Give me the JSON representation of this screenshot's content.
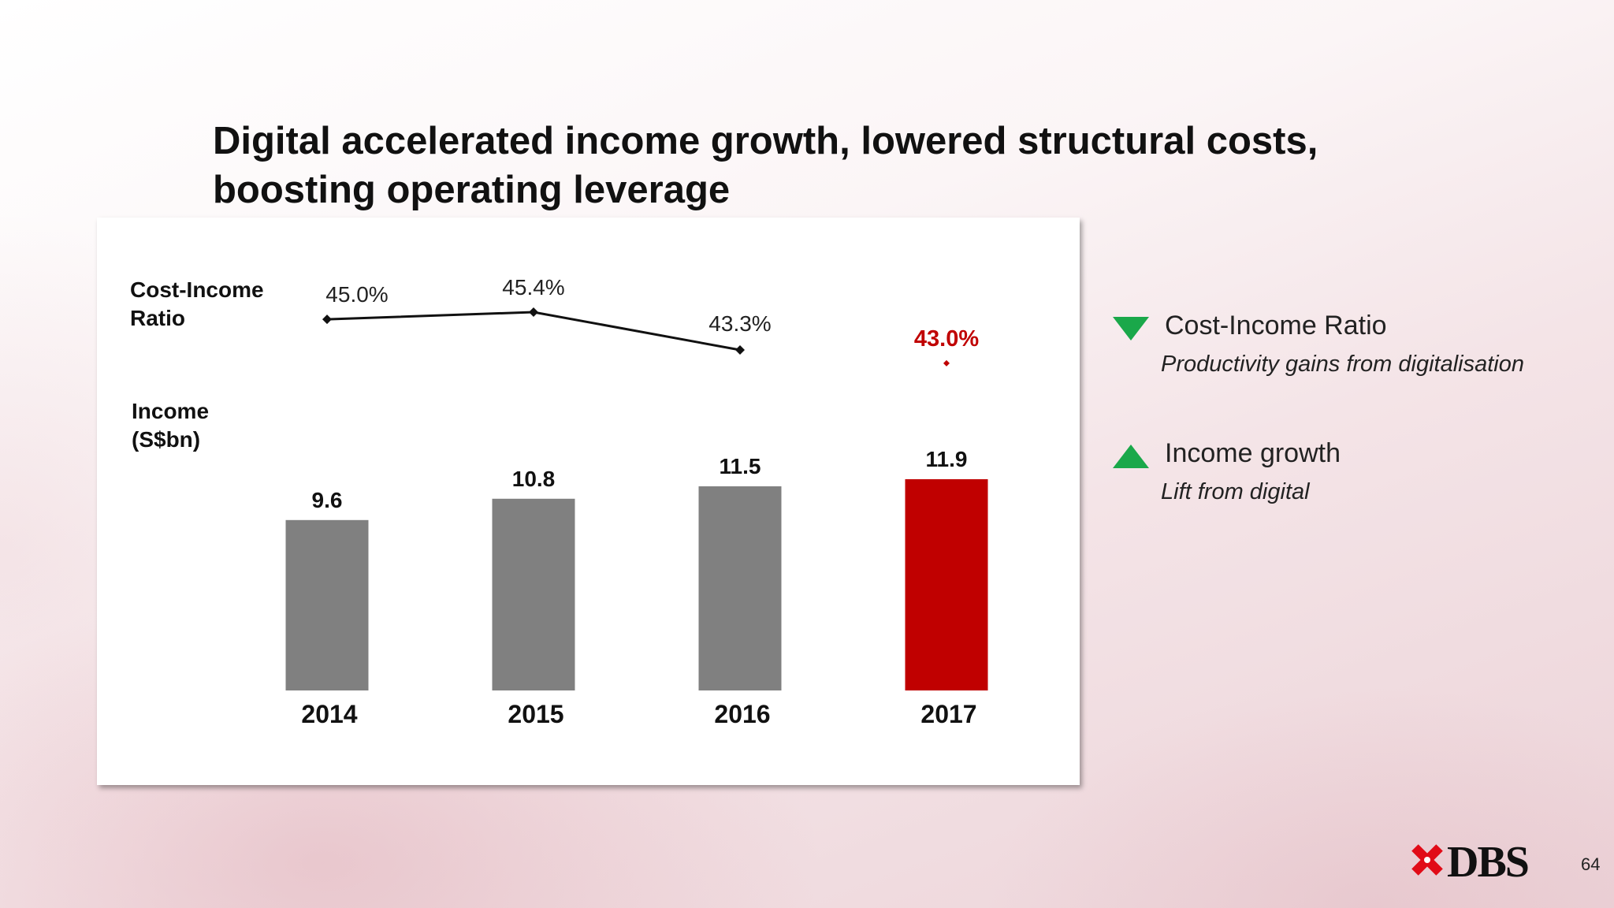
{
  "slide": {
    "title_line1": "Digital accelerated income growth, lowered structural costs,",
    "title_line2": "boosting operating leverage",
    "page_number": "64",
    "logo_text": "DBS"
  },
  "labels": {
    "cost_income_line1": "Cost-Income",
    "cost_income_line2": "Ratio",
    "income_line1": "Income",
    "income_line2": "(S$bn)"
  },
  "legend": [
    {
      "direction": "down",
      "color": "#1aa84a",
      "title": "Cost-Income Ratio",
      "subtitle": "Productivity gains from digitalisation"
    },
    {
      "direction": "up",
      "color": "#1aa84a",
      "title": "Income growth",
      "subtitle": "Lift from digital"
    }
  ],
  "chart_data": [
    {
      "type": "line",
      "title": "",
      "categories": [
        "2014",
        "2015",
        "2016",
        "2017"
      ],
      "series": [
        {
          "values": [
            45.0,
            45.4,
            43.3,
            43.0
          ],
          "labels": [
            "45.0%",
            "45.4%",
            "43.3%",
            "43.0%"
          ]
        }
      ],
      "highlight": {
        "index": 3,
        "color": "#c00000",
        "connected": false
      },
      "line_color": "#111111"
    },
    {
      "type": "bar",
      "title": "",
      "categories": [
        "2014",
        "2015",
        "2016",
        "2017"
      ],
      "values": [
        9.6,
        10.8,
        11.5,
        11.9
      ],
      "labels": [
        "9.6",
        "10.8",
        "11.5",
        "11.9"
      ],
      "colors": [
        "#808080",
        "#808080",
        "#808080",
        "#c00000"
      ],
      "ylim": [
        0,
        11.9
      ]
    }
  ]
}
